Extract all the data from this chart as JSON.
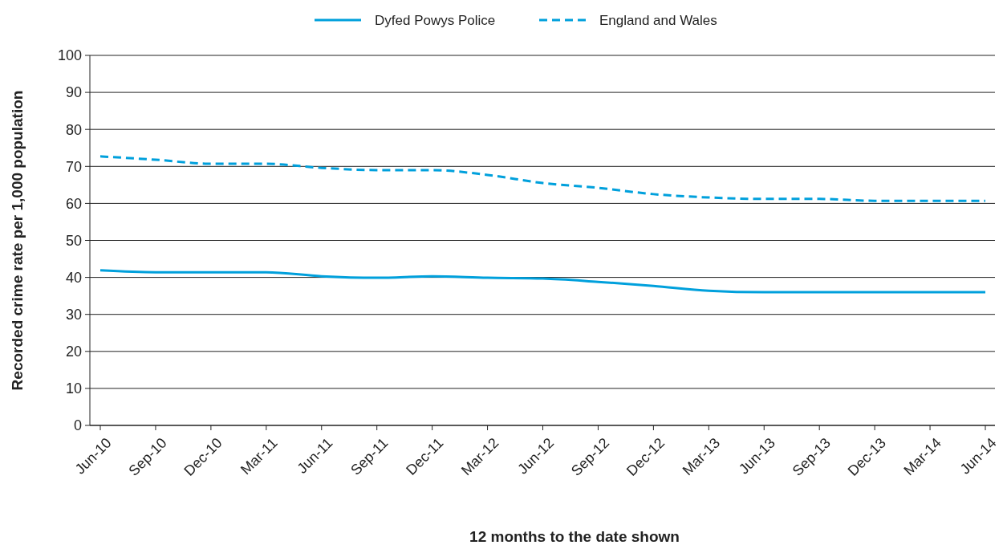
{
  "chart_data": {
    "type": "line",
    "xlabel": "12 months to the date shown",
    "ylabel": "Recorded crime rate per 1,000 population",
    "categories": [
      "Jun-10",
      "Sep-10",
      "Dec-10",
      "Mar-11",
      "Jun-11",
      "Sep-11",
      "Dec-11",
      "Mar-12",
      "Jun-12",
      "Sep-12",
      "Dec-12",
      "Mar-13",
      "Jun-13",
      "Sep-13",
      "Dec-13",
      "Mar-14",
      "Jun-14"
    ],
    "series": [
      {
        "name": "Dyfed Powys Police",
        "color": "#00a0dc",
        "line_style": "solid",
        "values": [
          41.9,
          41.4,
          41.4,
          41.4,
          40.3,
          39.9,
          40.3,
          39.9,
          39.7,
          38.8,
          37.7,
          36.4,
          36.0,
          36.0,
          36.0,
          36.0,
          36.0
        ]
      },
      {
        "name": "England and Wales",
        "color": "#00a0dc",
        "line_style": "dashed",
        "values": [
          72.7,
          71.8,
          70.7,
          70.7,
          69.6,
          69.0,
          69.0,
          67.7,
          65.5,
          64.2,
          62.5,
          61.6,
          61.2,
          61.2,
          60.7,
          60.7,
          60.7
        ]
      }
    ],
    "ylim": [
      0,
      100
    ],
    "yticks": [
      0,
      10,
      20,
      30,
      40,
      50,
      60,
      70,
      80,
      90,
      100
    ],
    "grid": "y",
    "legend": "top",
    "marker": "none"
  }
}
